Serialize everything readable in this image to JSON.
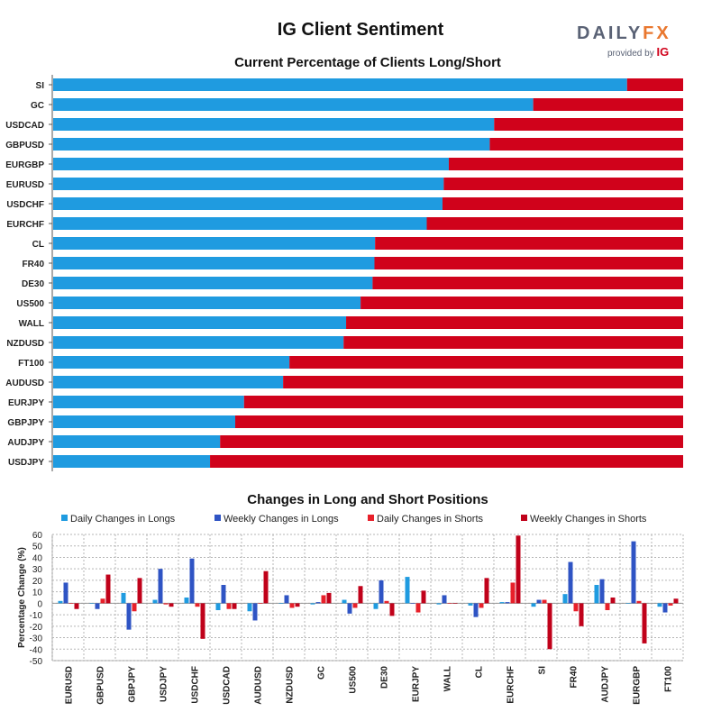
{
  "header": {
    "title": "IG Client Sentiment",
    "brand": {
      "main": "DAILY",
      "accent": "FX",
      "sub": "provided by",
      "ig": "IG"
    }
  },
  "colors": {
    "long": "#1f9be0",
    "short": "#d0021b",
    "daily_long": "#1f9be0",
    "weekly_long": "#2f54c4",
    "daily_short": "#e8202a",
    "weekly_short": "#c0011a"
  },
  "chart_data": [
    {
      "type": "bar",
      "orientation": "horizontal",
      "stacked": true,
      "title": "Current Percentage of Clients Long/Short",
      "categories": [
        "SI",
        "GC",
        "USDCAD",
        "GBPUSD",
        "EURGBP",
        "EURUSD",
        "USDCHF",
        "EURCHF",
        "CL",
        "FR40",
        "DE30",
        "US500",
        "WALL",
        "NZDUSD",
        "FT100",
        "AUDUSD",
        "EURJPY",
        "GBPJPY",
        "AUDJPY",
        "USDJPY"
      ],
      "series": [
        {
          "values": [
            91.1,
            76.2,
            70.0,
            69.3,
            62.8,
            62.0,
            61.8,
            59.3,
            51.1,
            51.0,
            50.7,
            48.8,
            46.5,
            46.1,
            37.5,
            36.5,
            30.3,
            28.9,
            26.5,
            24.9
          ]
        },
        {
          "values": [
            8.9,
            23.8,
            30.0,
            30.7,
            37.2,
            38.0,
            38.2,
            40.7,
            48.9,
            49.0,
            49.3,
            51.2,
            53.5,
            53.9,
            62.5,
            63.5,
            69.7,
            71.1,
            73.5,
            75.1
          ]
        }
      ],
      "xlim": [
        0,
        100
      ]
    },
    {
      "type": "bar",
      "title": "Changes in Long and Short Positions",
      "ylabel": "Percentage Change (%)",
      "ylim": [
        -50,
        60
      ],
      "yticks": [
        60,
        50,
        40,
        30,
        20,
        10,
        0,
        -10,
        -20,
        -30,
        -40,
        -50
      ],
      "categories": [
        "EURUSD",
        "GBPUSD",
        "GBPJPY",
        "USDJPY",
        "USDCHF",
        "USDCAD",
        "AUDUSD",
        "NZDUSD",
        "GC",
        "US500",
        "DE30",
        "EURJPY",
        "WALL",
        "CL",
        "EURCHF",
        "SI",
        "FR40",
        "AUDJPY",
        "EURGBP",
        "FT100"
      ],
      "legend_position": "top",
      "series": [
        {
          "name": "Daily Changes in Longs",
          "values": [
            2,
            0,
            9,
            3,
            5,
            -6,
            -7,
            0,
            -1,
            3,
            -5,
            23,
            -1,
            -2,
            1,
            -3,
            8,
            16,
            0,
            -3
          ]
        },
        {
          "name": "Weekly Changes in Longs",
          "values": [
            18,
            -5,
            -23,
            30,
            39,
            16,
            -15,
            7,
            1,
            -9,
            20,
            0,
            7,
            -12,
            1,
            3,
            36,
            21,
            54,
            -8
          ]
        },
        {
          "name": "Daily Changes in Shorts",
          "values": [
            0,
            4,
            -7,
            -1,
            -3,
            -5,
            0,
            -4,
            7,
            -4,
            2,
            -8,
            0,
            -4,
            18,
            3,
            -7,
            -6,
            2,
            -2
          ]
        },
        {
          "name": "Weekly Changes in Shorts",
          "values": [
            -5,
            25,
            22,
            -3,
            -31,
            -5,
            28,
            -3,
            9,
            15,
            -11,
            11,
            0,
            22,
            59,
            -40,
            -20,
            5,
            -35,
            4
          ]
        }
      ]
    }
  ]
}
